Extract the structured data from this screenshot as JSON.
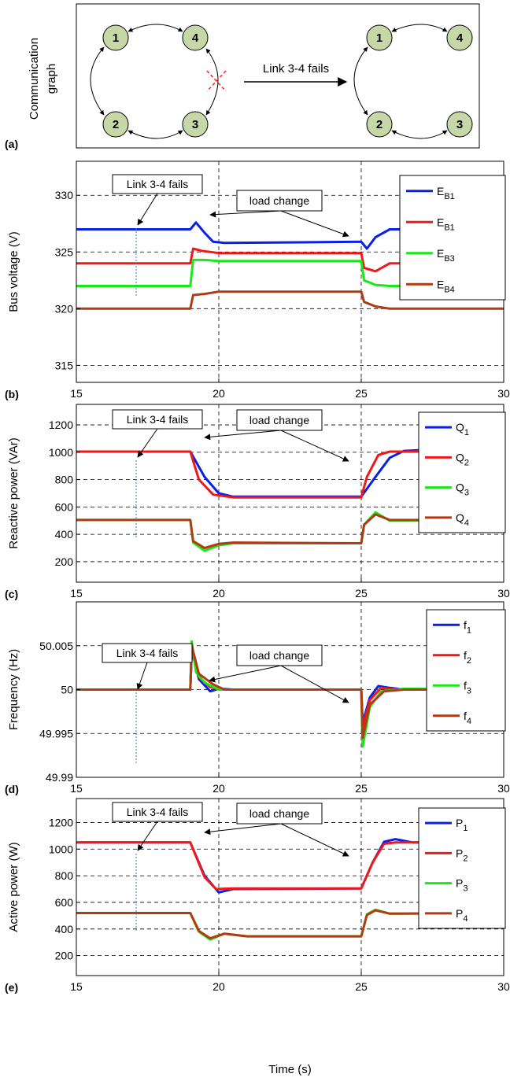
{
  "diagram": {
    "label": "(a)",
    "ylabel_line1": "Communication",
    "ylabel_line2": "graph",
    "arrow_text": "Link 3-4 fails",
    "nodes": [
      "1",
      "2",
      "3",
      "4"
    ]
  },
  "colors": {
    "s1": "#0a20e6",
    "s2": "#f01818",
    "s3": "#18e818",
    "s4": "#b03c14",
    "node": "#c8d7a8"
  },
  "chart_data": [
    {
      "type": "line",
      "label": "(b)",
      "ylabel": "Bus voltage (V)",
      "xlabel": "",
      "xlim": [
        15,
        30
      ],
      "ylim": [
        313.5,
        333
      ],
      "yticks": [
        315,
        320,
        325,
        330
      ],
      "ytick_labels": [
        "315",
        "320",
        "325",
        "330"
      ],
      "xticks": [
        15,
        20,
        25,
        30
      ],
      "xtick_labels": [
        "15",
        "20",
        "25",
        "30"
      ],
      "grid": true,
      "legend_position": "top-right",
      "annotations": [
        "Link 3-4 fails",
        "load change"
      ],
      "series": [
        {
          "name_main": "E",
          "name_sub": "B1",
          "x": [
            15,
            19,
            19.2,
            19.5,
            19.8,
            20.2,
            25,
            25.2,
            25.5,
            26,
            30
          ],
          "y": [
            327,
            327,
            327.6,
            326.7,
            325.9,
            325.8,
            325.9,
            325.3,
            326.3,
            327,
            327
          ]
        },
        {
          "name_main": "E",
          "name_sub": "B1",
          "x": [
            15,
            19,
            19.1,
            19.4,
            20,
            25,
            25.1,
            25.5,
            26,
            30
          ],
          "y": [
            324,
            324,
            325.3,
            325.1,
            324.9,
            324.9,
            323.6,
            323.3,
            324,
            324
          ]
        },
        {
          "name_main": "E",
          "name_sub": "B3",
          "x": [
            15,
            19,
            19.1,
            19.5,
            20,
            25,
            25.1,
            25.5,
            26,
            30
          ],
          "y": [
            322,
            322,
            324.3,
            324.3,
            324.2,
            324.2,
            322.5,
            322.1,
            322,
            322
          ]
        },
        {
          "name_main": "E",
          "name_sub": "B4",
          "x": [
            15,
            19,
            19.1,
            19.5,
            20,
            25,
            25.1,
            25.5,
            26,
            30
          ],
          "y": [
            320,
            320,
            321.2,
            321.3,
            321.5,
            321.5,
            320.6,
            320.2,
            320,
            320
          ]
        }
      ]
    },
    {
      "type": "line",
      "label": "(c)",
      "ylabel": "Reactive power (VAr)",
      "xlabel": "",
      "xlim": [
        15,
        30
      ],
      "ylim": [
        50,
        1350
      ],
      "yticks": [
        200,
        400,
        600,
        800,
        1000,
        1200
      ],
      "ytick_labels": [
        "200",
        "400",
        "600",
        "800",
        "1000",
        "1200"
      ],
      "xticks": [
        15,
        20,
        25,
        30
      ],
      "xtick_labels": [
        "15",
        "20",
        "25",
        "30"
      ],
      "grid": true,
      "legend_position": "top-right",
      "annotations": [
        "Link 3-4 fails",
        "load change"
      ],
      "series": [
        {
          "name_main": "Q",
          "name_sub": "1",
          "x": [
            15,
            19,
            19.5,
            20,
            20.5,
            25,
            25.5,
            26,
            26.5,
            27,
            30
          ],
          "y": [
            1005,
            1005,
            820,
            700,
            675,
            675,
            820,
            960,
            1010,
            1015,
            1005
          ]
        },
        {
          "name_main": "Q",
          "name_sub": "2",
          "x": [
            15,
            19,
            19.3,
            19.8,
            20.5,
            25,
            25.2,
            25.6,
            26,
            30
          ],
          "y": [
            1005,
            1005,
            800,
            690,
            670,
            670,
            820,
            980,
            1005,
            1005
          ]
        },
        {
          "name_main": "Q",
          "name_sub": "3",
          "x": [
            15,
            19,
            19.1,
            19.5,
            20,
            20.5,
            25,
            25.1,
            25.5,
            26,
            30
          ],
          "y": [
            505,
            505,
            340,
            280,
            320,
            335,
            335,
            470,
            560,
            500,
            505
          ]
        },
        {
          "name_main": "Q",
          "name_sub": "4",
          "x": [
            15,
            19,
            19.1,
            19.5,
            20,
            20.5,
            25,
            25.1,
            25.5,
            26,
            30
          ],
          "y": [
            505,
            505,
            350,
            300,
            330,
            340,
            335,
            470,
            545,
            505,
            505
          ]
        }
      ]
    },
    {
      "type": "line",
      "label": "(d)",
      "ylabel": "Frequency (Hz)",
      "xlabel": "",
      "xlim": [
        15,
        30
      ],
      "ylim": [
        49.99,
        50.01
      ],
      "yticks": [
        49.99,
        49.995,
        50,
        50.005
      ],
      "ytick_labels": [
        "49.99",
        "49.995",
        "50",
        "50.005"
      ],
      "xticks": [
        15,
        20,
        25,
        30
      ],
      "xtick_labels": [
        "15",
        "20",
        "25",
        "30"
      ],
      "grid": true,
      "legend_position": "top-right",
      "annotations": [
        "Link 3-4 fails",
        "load change"
      ],
      "series": [
        {
          "name_main": "f",
          "name_sub": "1",
          "x": [
            15,
            19,
            19.05,
            19.3,
            19.7,
            20,
            20.5,
            25,
            25.05,
            25.3,
            25.6,
            26,
            26.5,
            30
          ],
          "y": [
            50,
            50,
            50.0045,
            50.0012,
            49.9998,
            50.0001,
            50,
            50,
            49.9962,
            49.9991,
            50.0004,
            50.0002,
            50,
            50
          ]
        },
        {
          "name_main": "f",
          "name_sub": "2",
          "x": [
            15,
            19,
            19.05,
            19.3,
            19.7,
            20,
            25,
            25.05,
            25.3,
            25.7,
            26.2,
            30
          ],
          "y": [
            50,
            50,
            50.0048,
            50.0014,
            50.0003,
            50,
            50,
            49.9957,
            49.9988,
            50.0002,
            50,
            50
          ]
        },
        {
          "name_main": "f",
          "name_sub": "3",
          "x": [
            15,
            19,
            19.05,
            19.2,
            19.5,
            20,
            25,
            25.05,
            25.3,
            25.7,
            26.5,
            30
          ],
          "y": [
            50,
            50,
            50.0055,
            50.002,
            50.0008,
            50,
            50,
            49.9935,
            49.998,
            49.9998,
            50.0001,
            50
          ]
        },
        {
          "name_main": "f",
          "name_sub": "4",
          "x": [
            15,
            19,
            19.05,
            19.3,
            19.8,
            20.2,
            25,
            25.05,
            25.3,
            25.8,
            26.5,
            30
          ],
          "y": [
            50,
            50,
            50.005,
            50.0018,
            50.0006,
            50,
            50,
            49.9945,
            49.9983,
            49.9998,
            50,
            50
          ]
        }
      ]
    },
    {
      "type": "line",
      "label": "(e)",
      "ylabel": "Active power (W)",
      "xlabel": "Time (s)",
      "xlim": [
        15,
        30
      ],
      "ylim": [
        50,
        1380
      ],
      "yticks": [
        200,
        400,
        600,
        800,
        1000,
        1200
      ],
      "ytick_labels": [
        "200",
        "400",
        "600",
        "800",
        "1000",
        "1200"
      ],
      "xticks": [
        15,
        20,
        25,
        30
      ],
      "xtick_labels": [
        "15",
        "20",
        "25",
        "30"
      ],
      "grid": true,
      "legend_position": "top-right",
      "annotations": [
        "Link 3-4 fails",
        "load change"
      ],
      "series": [
        {
          "name_main": "P",
          "name_sub": "1",
          "x": [
            15,
            19,
            19.5,
            20,
            20.5,
            25,
            25.4,
            25.8,
            26.2,
            26.8,
            30
          ],
          "y": [
            1050,
            1050,
            800,
            675,
            700,
            705,
            900,
            1055,
            1075,
            1050,
            1050
          ]
        },
        {
          "name_main": "P",
          "name_sub": "2",
          "x": [
            15,
            19,
            19.5,
            19.9,
            20.5,
            25,
            25.4,
            25.8,
            26.2,
            30
          ],
          "y": [
            1050,
            1050,
            790,
            700,
            705,
            705,
            900,
            1040,
            1050,
            1050
          ]
        },
        {
          "name_main": "P",
          "name_sub": "3",
          "x": [
            15,
            19,
            19.3,
            19.7,
            20.2,
            21,
            25,
            25.2,
            25.5,
            26,
            30
          ],
          "y": [
            520,
            520,
            380,
            320,
            365,
            345,
            345,
            510,
            545,
            515,
            520
          ]
        },
        {
          "name_main": "P",
          "name_sub": "4",
          "x": [
            15,
            19,
            19.3,
            19.7,
            20.2,
            21,
            25,
            25.2,
            25.5,
            26,
            30
          ],
          "y": [
            520,
            520,
            385,
            330,
            365,
            345,
            345,
            505,
            540,
            515,
            520
          ]
        }
      ]
    }
  ]
}
